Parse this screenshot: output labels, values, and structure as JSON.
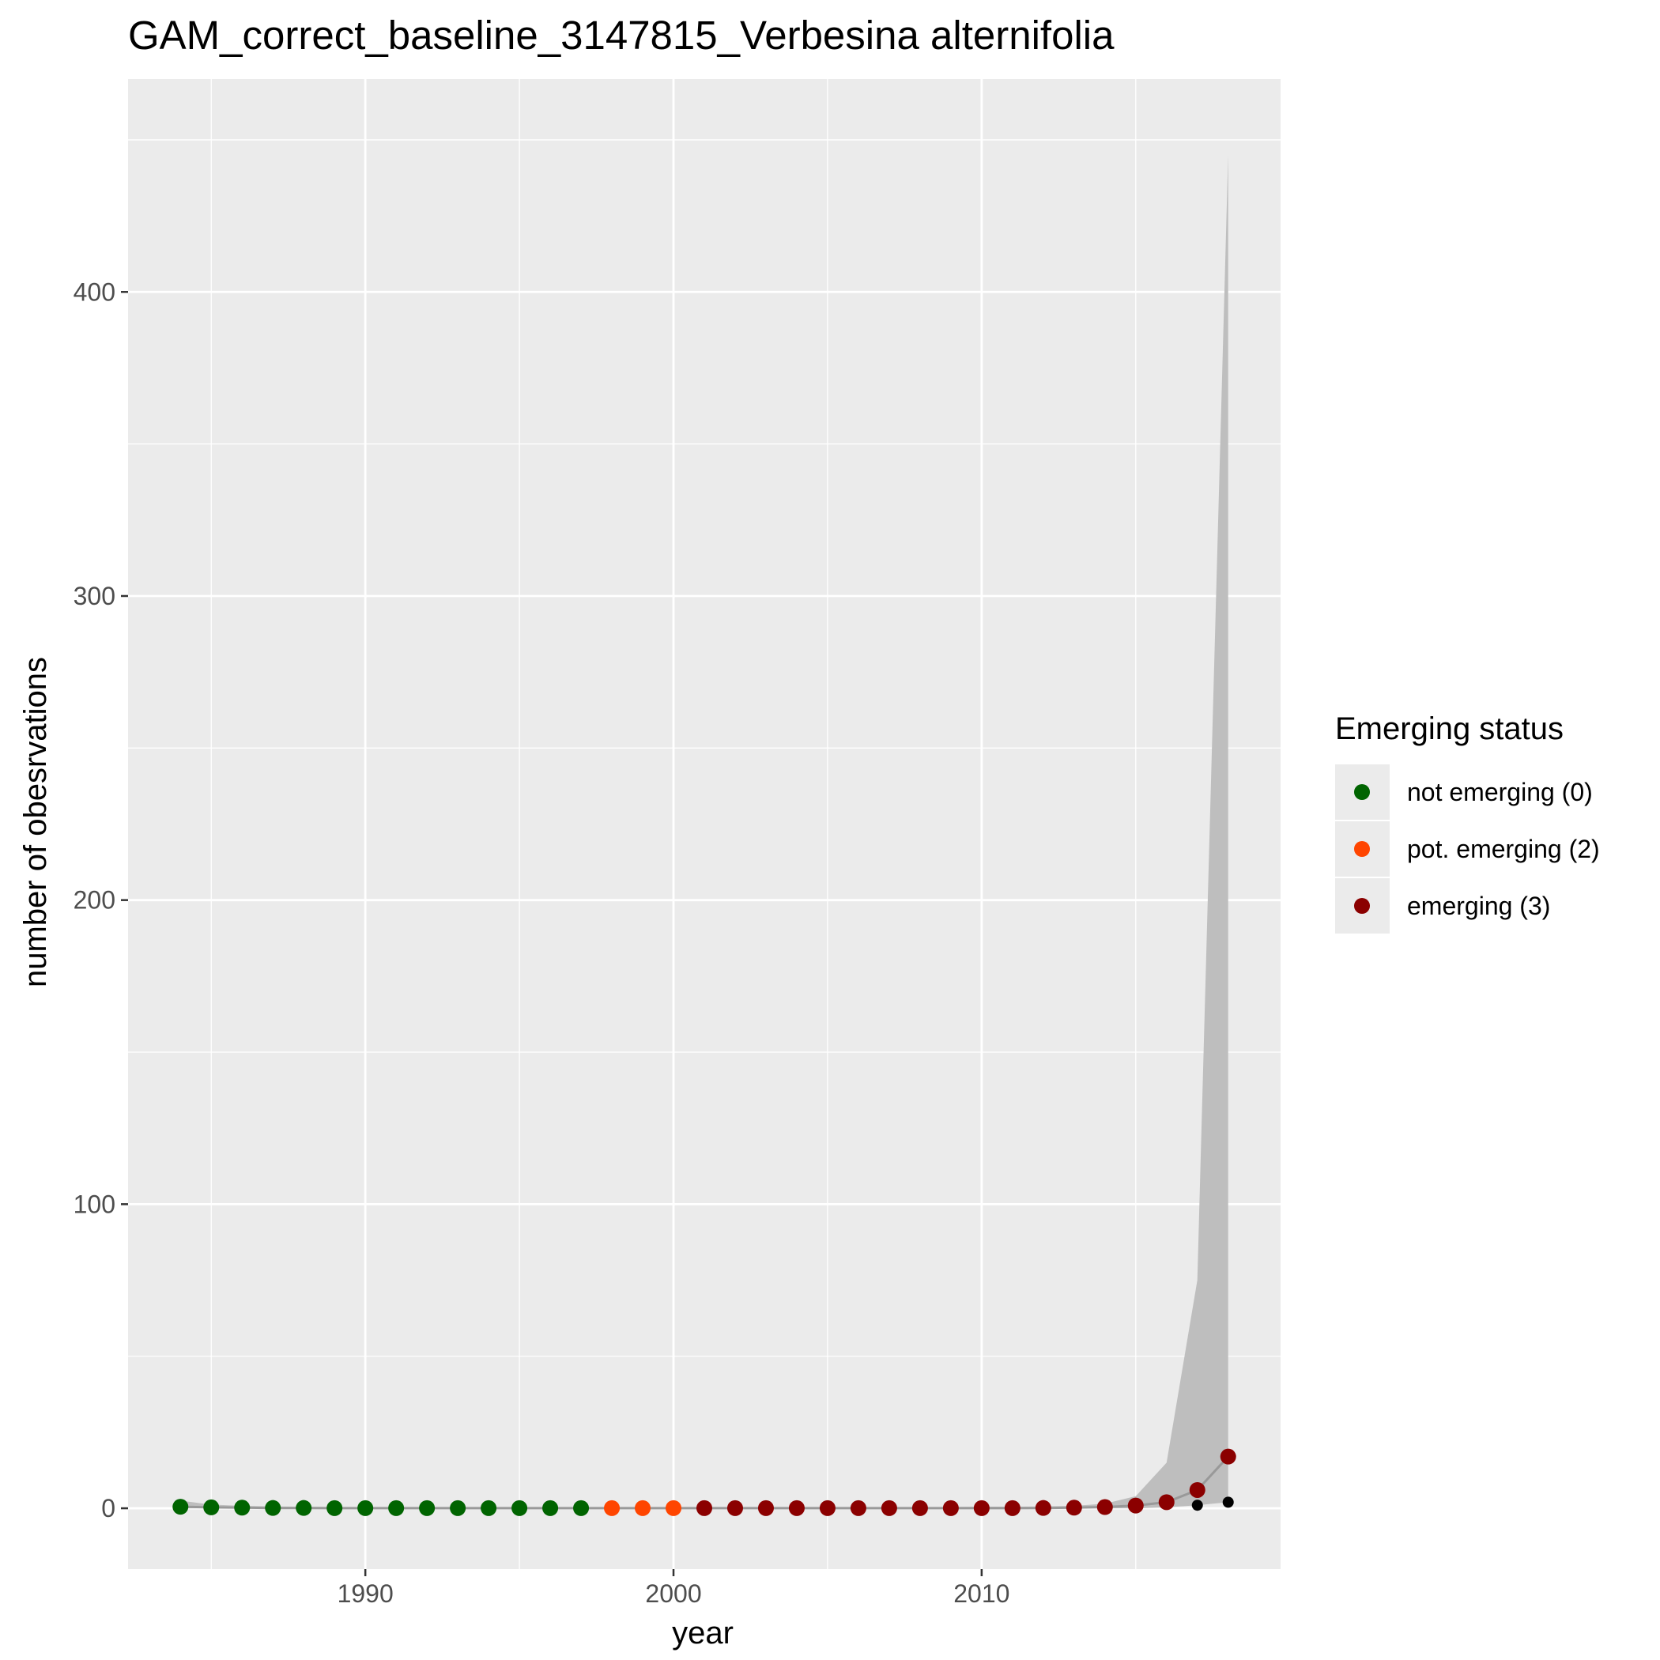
{
  "chart_data": {
    "type": "line",
    "title": "GAM_correct_baseline_3147815_Verbesina alternifolia",
    "xlabel": "year",
    "ylabel": "number of obesrvations",
    "xlim": [
      1982.3,
      2019.7
    ],
    "ylim": [
      -20,
      470
    ],
    "x_ticks": [
      1990,
      2000,
      2010
    ],
    "y_ticks": [
      0,
      100,
      200,
      300,
      400
    ],
    "grid": true,
    "legend": {
      "title": "Emerging status",
      "placement": "right",
      "entries": [
        {
          "label": "not emerging (0)",
          "color": "#006400"
        },
        {
          "label": "pot. emerging (2)",
          "color": "#ff4500"
        },
        {
          "label": "emerging (3)",
          "color": "#8b0000"
        }
      ]
    },
    "fitted": {
      "x": [
        1984,
        1985,
        1986,
        1987,
        1988,
        1989,
        1990,
        1991,
        1992,
        1993,
        1994,
        1995,
        1996,
        1997,
        1998,
        1999,
        2000,
        2001,
        2002,
        2003,
        2004,
        2005,
        2006,
        2007,
        2008,
        2009,
        2010,
        2011,
        2012,
        2013,
        2014,
        2015,
        2016,
        2017,
        2018
      ],
      "y": [
        0.5,
        0.3,
        0.2,
        0.1,
        0.1,
        0.05,
        0.05,
        0.05,
        0.05,
        0.05,
        0.05,
        0.05,
        0.05,
        0.05,
        0.05,
        0.05,
        0.05,
        0.05,
        0.05,
        0.05,
        0.05,
        0.05,
        0.05,
        0.05,
        0.05,
        0.05,
        0.05,
        0.05,
        0.1,
        0.2,
        0.4,
        0.9,
        2,
        6,
        17
      ],
      "status": [
        0,
        0,
        0,
        0,
        0,
        0,
        0,
        0,
        0,
        0,
        0,
        0,
        0,
        0,
        2,
        2,
        2,
        3,
        3,
        3,
        3,
        3,
        3,
        3,
        3,
        3,
        3,
        3,
        3,
        3,
        3,
        3,
        3,
        3,
        3
      ]
    },
    "ci_band": {
      "x": [
        1984,
        1985,
        1986,
        1987,
        1988,
        1989,
        1990,
        1991,
        1992,
        1993,
        1994,
        1995,
        1996,
        1997,
        1998,
        1999,
        2000,
        2001,
        2002,
        2003,
        2004,
        2005,
        2006,
        2007,
        2008,
        2009,
        2010,
        2011,
        2012,
        2013,
        2014,
        2015,
        2016,
        2017,
        2018
      ],
      "lower": [
        0,
        0,
        0,
        0,
        0,
        0,
        0,
        0,
        0,
        0,
        0,
        0,
        0,
        0,
        0,
        0,
        0,
        0,
        0,
        0,
        0,
        0,
        0,
        0,
        0,
        0,
        0,
        0,
        0,
        0,
        0,
        0,
        0.3,
        1,
        2
      ],
      "upper": [
        2.5,
        1.2,
        0.8,
        0.6,
        0.5,
        0.4,
        0.4,
        0.4,
        0.4,
        0.4,
        0.4,
        0.4,
        0.4,
        0.4,
        0.4,
        0.4,
        0.4,
        0.4,
        0.4,
        0.4,
        0.4,
        0.4,
        0.4,
        0.4,
        0.4,
        0.4,
        0.5,
        0.5,
        0.6,
        0.8,
        1.5,
        4,
        15,
        75,
        445
      ]
    },
    "observed": {
      "x": [
        2017,
        2018
      ],
      "y": [
        1,
        2
      ]
    }
  },
  "colors": {
    "panel_bg": "#ebebeb",
    "grid": "#ffffff",
    "band": "#bebebe",
    "line": "#999999",
    "observed": "#000000",
    "status_0": "#006400",
    "status_2": "#ff4500",
    "status_3": "#8b0000"
  }
}
